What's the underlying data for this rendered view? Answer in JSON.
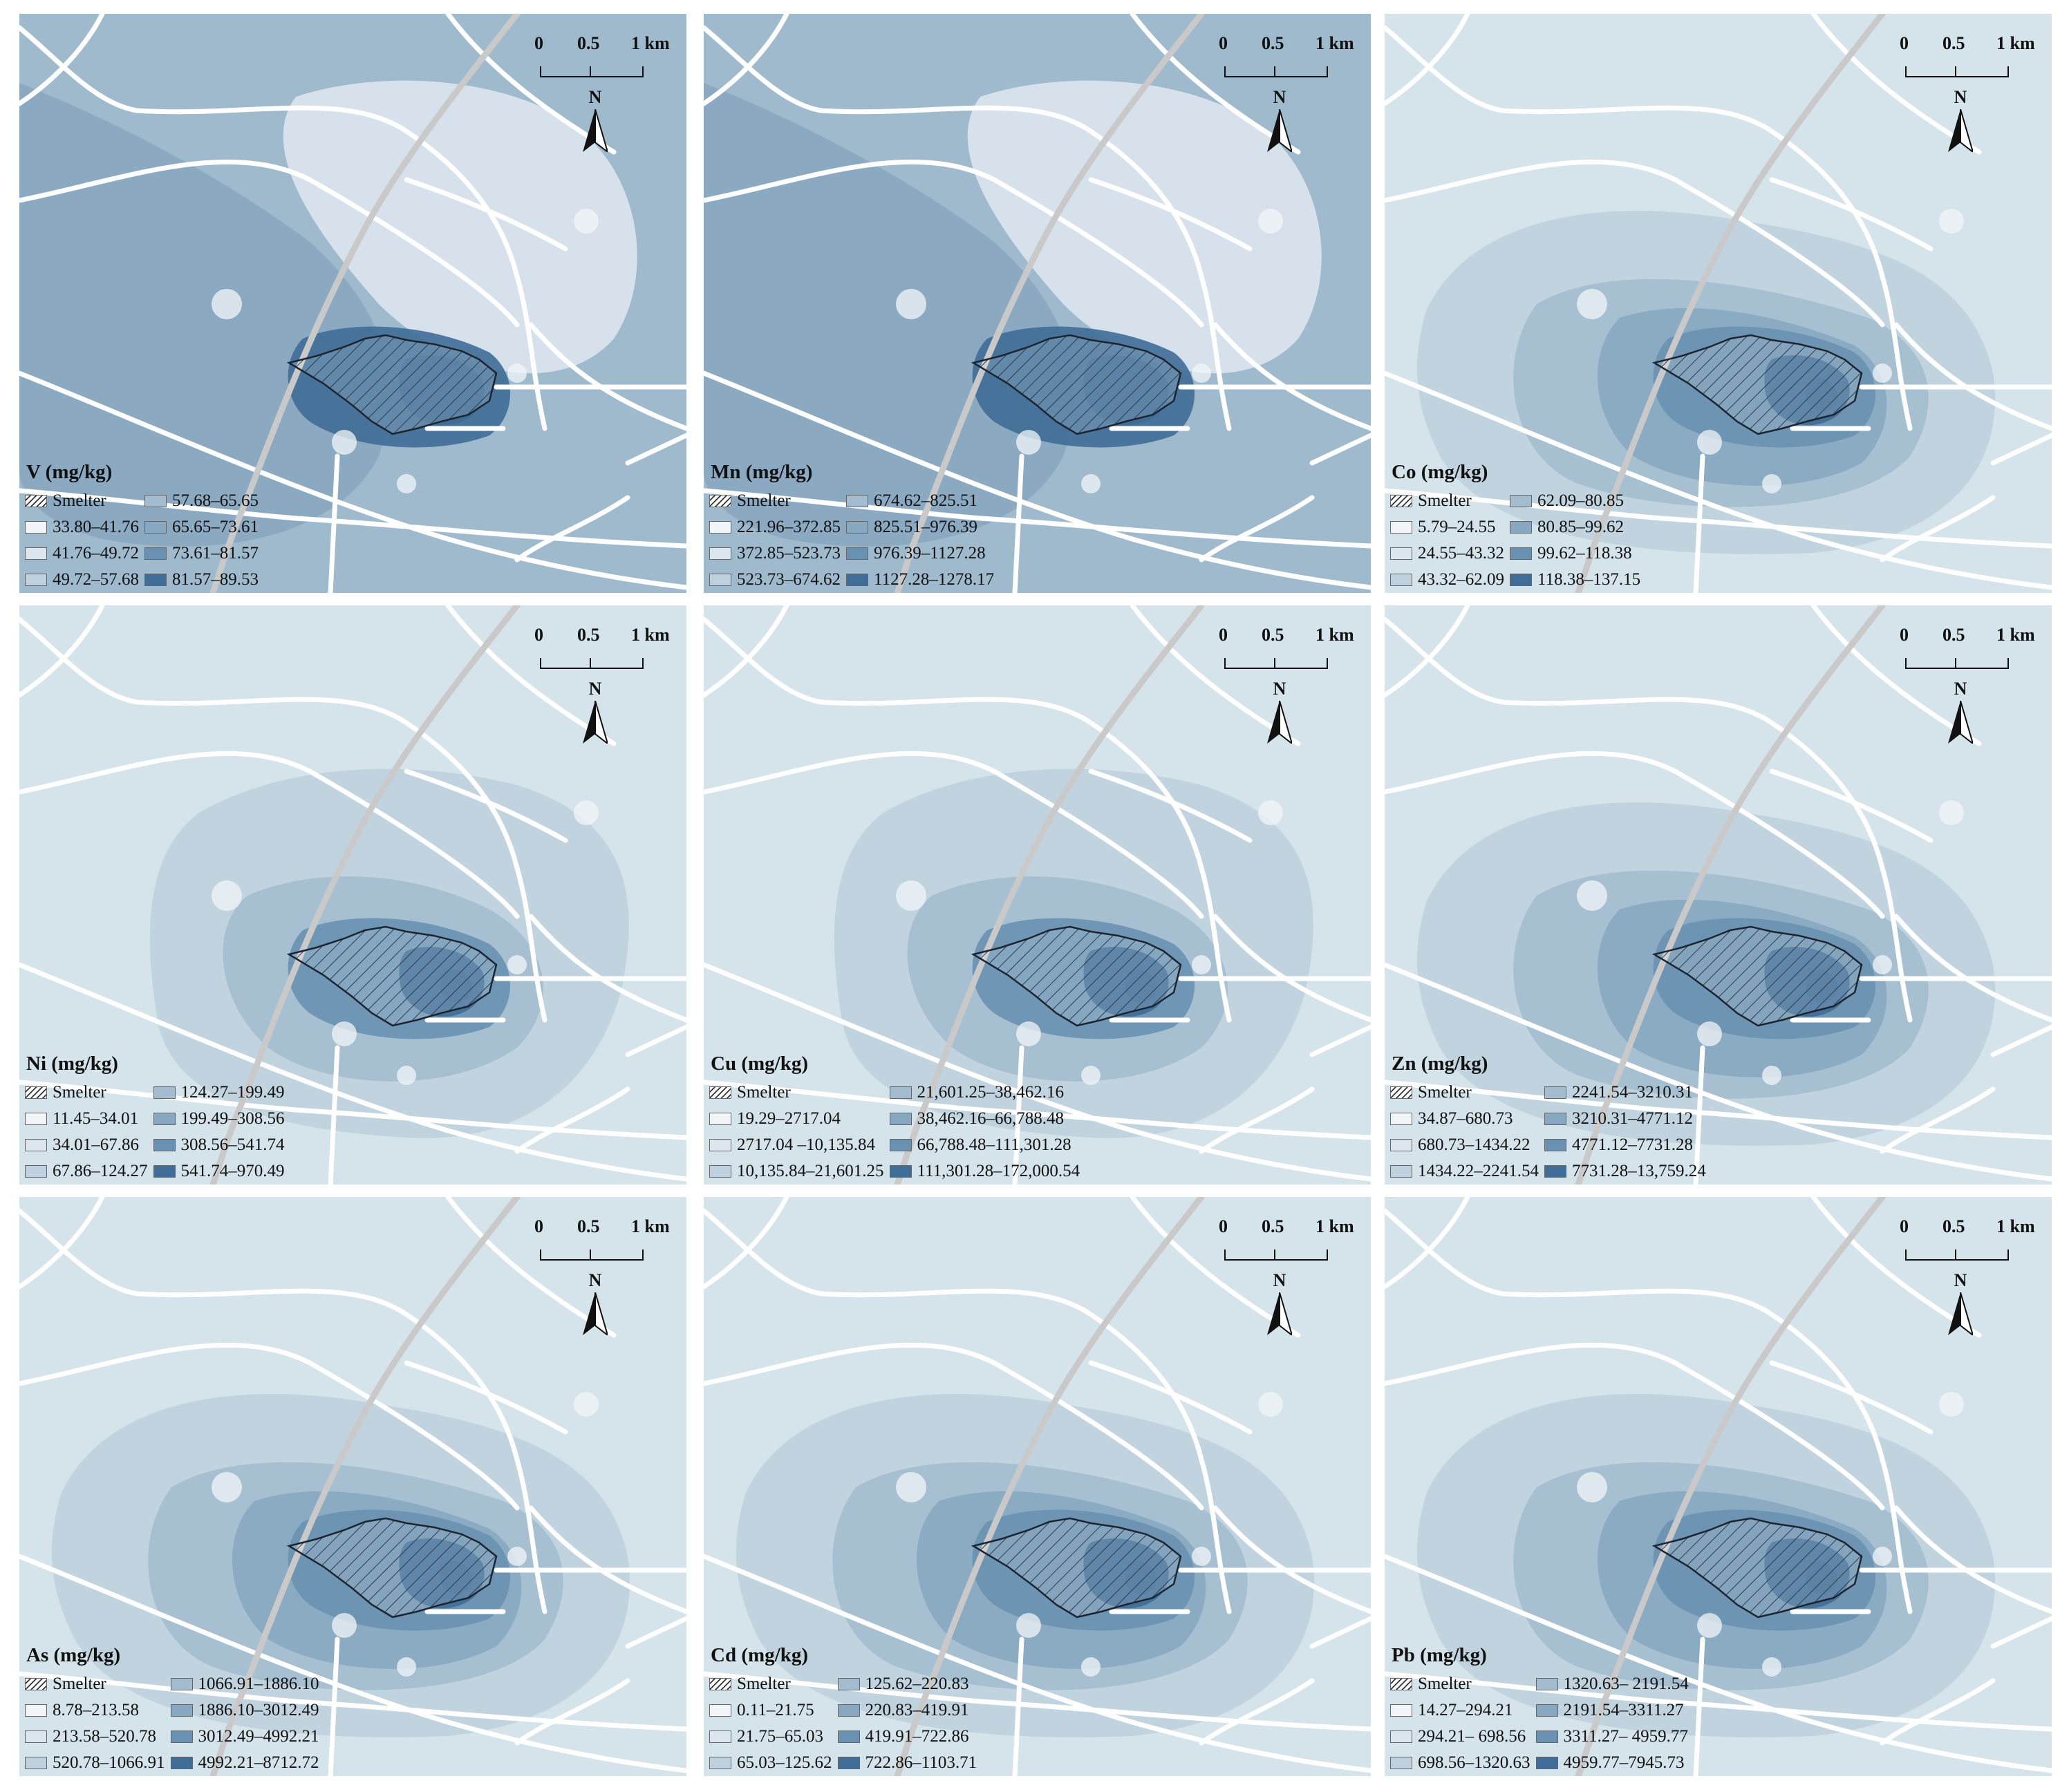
{
  "scale": {
    "zero": "0",
    "half": "0.5",
    "one": "1 km"
  },
  "north_label": "N",
  "smelter_label": "Smelter",
  "panels": [
    {
      "title": "V (mg/kg)",
      "base": "#7f9fbb",
      "classes": [
        "33.80–41.76",
        "41.76–49.72",
        "49.72–57.68",
        "57.68–65.65",
        "65.65–73.61",
        "73.61–81.57",
        "81.57–89.53"
      ],
      "colors": [
        "#f2f5f8",
        "#dce6ee",
        "#bfd0de",
        "#a3bccf",
        "#88a8c1",
        "#6a91b1",
        "#3f6d97"
      ]
    },
    {
      "title": "Mn (mg/kg)",
      "base": "#7f9fbb",
      "classes": [
        "221.96–372.85",
        "372.85–523.73",
        "523.73–674.62",
        "674.62–825.51",
        "825.51–976.39",
        "976.39–1127.28",
        "1127.28–1278.17"
      ],
      "colors": [
        "#f2f5f8",
        "#dce6ee",
        "#bfd0de",
        "#a3bccf",
        "#88a8c1",
        "#6a91b1",
        "#3f6d97"
      ]
    },
    {
      "title": "Co (mg/kg)",
      "base": "#d5e3ea",
      "classes": [
        "5.79–24.55",
        "24.55–43.32",
        "43.32–62.09",
        "62.09–80.85",
        "80.85–99.62",
        "99.62–118.38",
        "118.38–137.15"
      ],
      "colors": [
        "#f2f5f8",
        "#dce6ee",
        "#bfd0de",
        "#a3bccf",
        "#88a8c1",
        "#6a91b1",
        "#3f6d97"
      ]
    },
    {
      "title": "Ni (mg/kg)",
      "base": "#d5e3ea",
      "classes": [
        "11.45–34.01",
        "34.01–67.86",
        "67.86–124.27",
        "124.27–199.49",
        "199.49–308.56",
        "308.56–541.74",
        "541.74–970.49"
      ],
      "colors": [
        "#f2f5f8",
        "#dce6ee",
        "#bfd0de",
        "#a3bccf",
        "#88a8c1",
        "#6a91b1",
        "#3f6d97"
      ]
    },
    {
      "title": "Cu (mg/kg)",
      "base": "#d5e3ea",
      "classes": [
        "19.29–2717.04",
        "2717.04 –10,135.84",
        "10,135.84–21,601.25",
        "21,601.25–38,462.16",
        "38,462.16–66,788.48",
        "66,788.48–111,301.28",
        "111,301.28–172,000.54"
      ],
      "colors": [
        "#f2f5f8",
        "#dce6ee",
        "#bfd0de",
        "#a3bccf",
        "#88a8c1",
        "#6a91b1",
        "#3f6d97"
      ]
    },
    {
      "title": "Zn (mg/kg)",
      "base": "#d5e3ea",
      "classes": [
        "34.87–680.73",
        "680.73–1434.22",
        "1434.22–2241.54",
        "2241.54–3210.31",
        "3210.31–4771.12",
        "4771.12–7731.28",
        "7731.28–13,759.24"
      ],
      "colors": [
        "#f2f5f8",
        "#dce6ee",
        "#bfd0de",
        "#a3bccf",
        "#88a8c1",
        "#6a91b1",
        "#3f6d97"
      ]
    },
    {
      "title": "As (mg/kg)",
      "base": "#d5e3ea",
      "classes": [
        "8.78–213.58",
        "213.58–520.78",
        "520.78–1066.91",
        "1066.91–1886.10",
        "1886.10–3012.49",
        "3012.49–4992.21",
        "4992.21–8712.72"
      ],
      "colors": [
        "#f2f5f8",
        "#dce6ee",
        "#bfd0de",
        "#a3bccf",
        "#88a8c1",
        "#6a91b1",
        "#3f6d97"
      ]
    },
    {
      "title": "Cd (mg/kg)",
      "base": "#d5e3ea",
      "classes": [
        "0.11–21.75",
        "21.75–65.03",
        "65.03–125.62",
        "125.62–220.83",
        "220.83–419.91",
        "419.91–722.86",
        "722.86–1103.71"
      ],
      "colors": [
        "#f2f5f8",
        "#dce6ee",
        "#bfd0de",
        "#a3bccf",
        "#88a8c1",
        "#6a91b1",
        "#3f6d97"
      ]
    },
    {
      "title": "Pb (mg/kg)",
      "base": "#d5e3ea",
      "classes": [
        "14.27–294.21",
        "294.21– 698.56",
        "698.56–1320.63",
        "1320.63– 2191.54",
        "2191.54–3311.27",
        "3311.27– 4959.77",
        "4959.77–7945.73"
      ],
      "colors": [
        "#f2f5f8",
        "#dce6ee",
        "#bfd0de",
        "#a3bccf",
        "#88a8c1",
        "#6a91b1",
        "#3f6d97"
      ]
    }
  ]
}
